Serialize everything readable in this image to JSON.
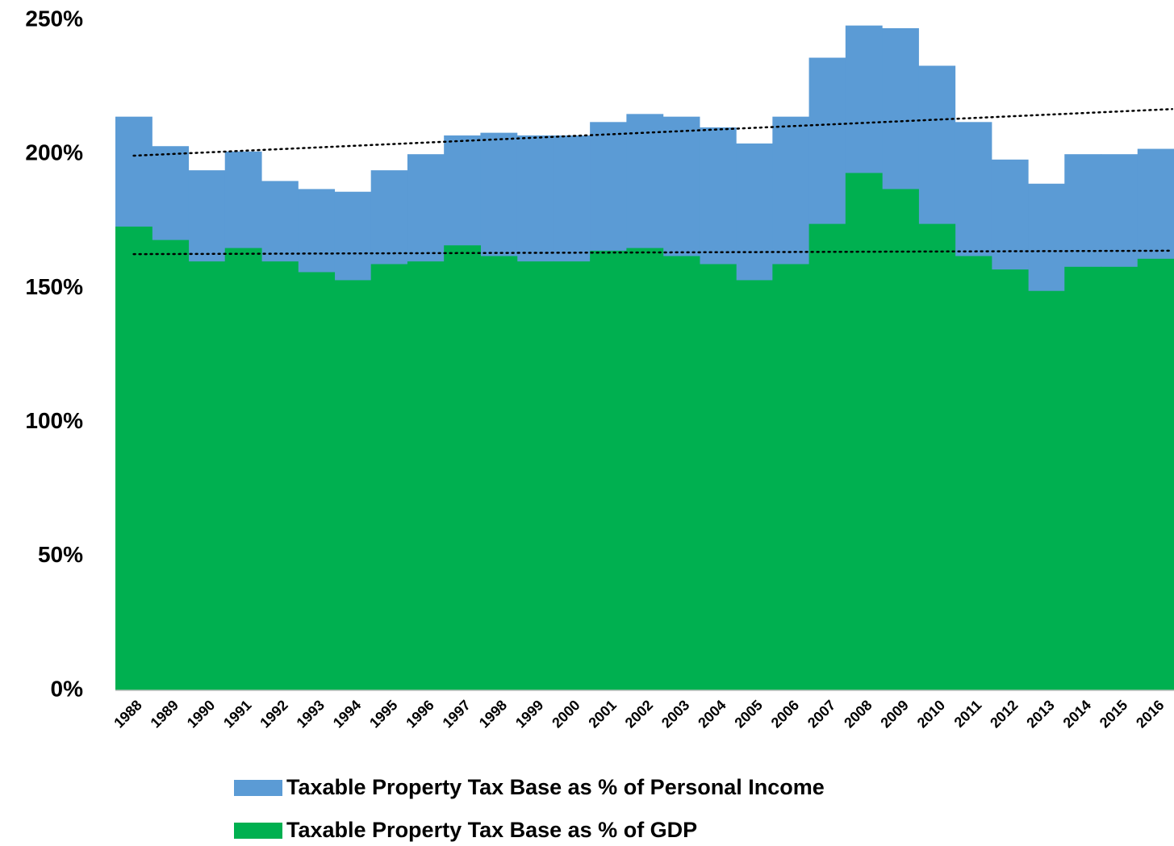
{
  "chart_data": {
    "type": "step-area",
    "categories": [
      "1988",
      "1989",
      "1990",
      "1991",
      "1992",
      "1993",
      "1994",
      "1995",
      "1996",
      "1997",
      "1998",
      "1999",
      "2000",
      "2001",
      "2002",
      "2003",
      "2004",
      "2005",
      "2006",
      "2007",
      "2008",
      "2009",
      "2010",
      "2011",
      "2012",
      "2013",
      "2014",
      "2015",
      "2016"
    ],
    "series": [
      {
        "name": "Taxable Property Tax Base as % of Personal Income",
        "color": "#5b9bd5",
        "values": [
          214,
          203,
          194,
          201,
          190,
          187,
          186,
          194,
          200,
          207,
          208,
          207,
          207,
          212,
          215,
          214,
          210,
          204,
          214,
          236,
          248,
          247,
          233,
          212,
          198,
          189,
          200,
          200,
          202
        ]
      },
      {
        "name": "Taxable Property Tax Base as % of GDP",
        "color": "#00b050",
        "values": [
          173,
          168,
          160,
          165,
          160,
          156,
          153,
          159,
          160,
          166,
          162,
          160,
          160,
          164,
          165,
          162,
          159,
          153,
          159,
          174,
          193,
          187,
          174,
          162,
          157,
          149,
          158,
          158,
          161
        ]
      }
    ],
    "ylim": [
      0,
      250
    ],
    "yticks": [
      {
        "value": 0,
        "label": "0%"
      },
      {
        "value": 50,
        "label": "50%"
      },
      {
        "value": 100,
        "label": "100%"
      },
      {
        "value": 150,
        "label": "150%"
      },
      {
        "value": 200,
        "label": "200%"
      },
      {
        "value": 250,
        "label": "250%"
      }
    ],
    "trendline": true,
    "legend": "bottom"
  }
}
